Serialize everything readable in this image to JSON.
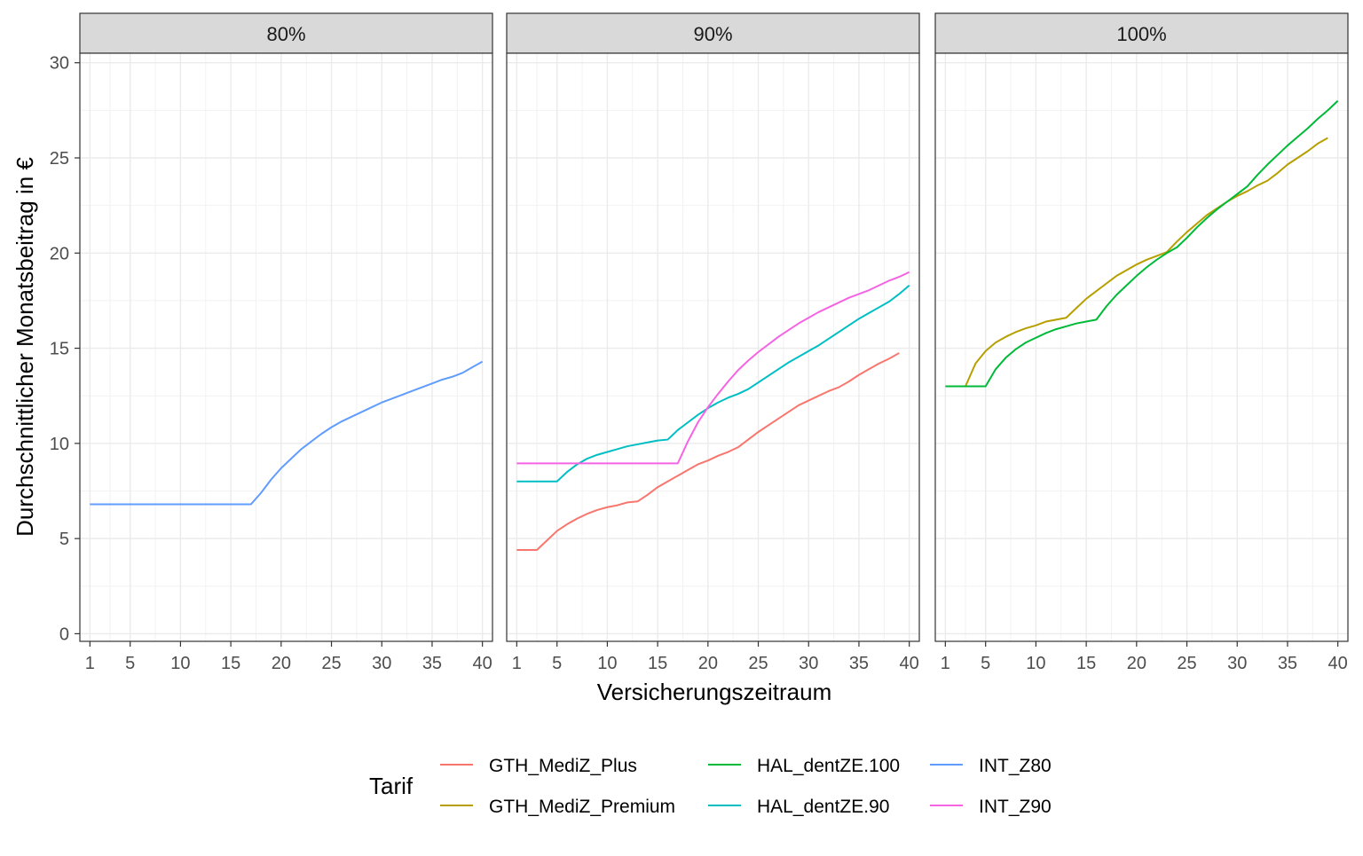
{
  "chart_data": {
    "type": "line",
    "xlabel": "Versicherungszeitraum",
    "ylabel": "Durchschnittlicher Monatsbeitrag in €",
    "xlim": [
      0,
      41
    ],
    "ylim": [
      -0.4,
      30.5
    ],
    "x_ticks": [
      1,
      5,
      10,
      15,
      20,
      25,
      30,
      35,
      40
    ],
    "x_tick_labels": [
      "1",
      "5",
      "10",
      "15",
      "20",
      "25",
      "30",
      "35",
      "40"
    ],
    "y_ticks": [
      0,
      5,
      10,
      15,
      20,
      25,
      30
    ],
    "y_tick_labels": [
      "0",
      "5",
      "10",
      "15",
      "20",
      "25",
      "30"
    ],
    "grid": true,
    "legend": {
      "title": "Tarif",
      "position": "bottom",
      "entries": [
        {
          "name": "GTH_MediZ_Plus",
          "color": "#F8766D"
        },
        {
          "name": "GTH_MediZ_Premium",
          "color": "#B79F00"
        },
        {
          "name": "HAL_dentZE.100",
          "color": "#00BA38"
        },
        {
          "name": "HAL_dentZE.90",
          "color": "#00BFC4"
        },
        {
          "name": "INT_Z80",
          "color": "#619CFF"
        },
        {
          "name": "INT_Z90",
          "color": "#F564E3"
        }
      ]
    },
    "panels": [
      {
        "label": "80%",
        "series": [
          {
            "name": "INT_Z80",
            "color": "#619CFF",
            "x": [
              1,
              17,
              18,
              19,
              20,
              21,
              22,
              23,
              24,
              25,
              26,
              27,
              28,
              29,
              30,
              31,
              32,
              33,
              34,
              35,
              36,
              37,
              38,
              39,
              40
            ],
            "y": [
              6.8,
              6.8,
              7.4,
              8.1,
              8.7,
              9.2,
              9.7,
              10.1,
              10.5,
              10.85,
              11.15,
              11.4,
              11.65,
              11.9,
              12.15,
              12.35,
              12.55,
              12.75,
              12.95,
              13.15,
              13.35,
              13.5,
              13.7,
              14.0,
              14.3
            ]
          }
        ]
      },
      {
        "label": "90%",
        "series": [
          {
            "name": "GTH_MediZ_Plus",
            "color": "#F8766D",
            "x": [
              1,
              3,
              4,
              5,
              6,
              7,
              8,
              9,
              10,
              11,
              12,
              13,
              14,
              15,
              16,
              17,
              18,
              19,
              20,
              21,
              22,
              23,
              24,
              25,
              26,
              27,
              28,
              29,
              30,
              31,
              32,
              33,
              34,
              35,
              36,
              37,
              38,
              39
            ],
            "y": [
              4.4,
              4.4,
              4.9,
              5.4,
              5.75,
              6.05,
              6.3,
              6.5,
              6.65,
              6.75,
              6.9,
              6.95,
              7.3,
              7.7,
              8.0,
              8.3,
              8.6,
              8.9,
              9.1,
              9.35,
              9.55,
              9.8,
              10.2,
              10.6,
              10.95,
              11.3,
              11.65,
              12.0,
              12.25,
              12.5,
              12.75,
              12.95,
              13.25,
              13.6,
              13.9,
              14.2,
              14.45,
              14.75
            ]
          },
          {
            "name": "HAL_dentZE.90",
            "color": "#00BFC4",
            "x": [
              1,
              5,
              6,
              7,
              8,
              9,
              10,
              11,
              12,
              13,
              14,
              15,
              16,
              17,
              18,
              19,
              20,
              21,
              22,
              23,
              24,
              25,
              26,
              27,
              28,
              29,
              30,
              31,
              32,
              33,
              34,
              35,
              36,
              37,
              38,
              39,
              40
            ],
            "y": [
              8.0,
              8.0,
              8.5,
              8.9,
              9.2,
              9.4,
              9.55,
              9.7,
              9.85,
              9.95,
              10.05,
              10.15,
              10.2,
              10.7,
              11.1,
              11.5,
              11.85,
              12.15,
              12.4,
              12.6,
              12.85,
              13.2,
              13.55,
              13.9,
              14.25,
              14.55,
              14.85,
              15.15,
              15.5,
              15.85,
              16.2,
              16.55,
              16.85,
              17.15,
              17.45,
              17.85,
              18.3
            ]
          },
          {
            "name": "INT_Z90",
            "color": "#F564E3",
            "x": [
              1,
              17,
              18,
              19,
              20,
              21,
              22,
              23,
              24,
              25,
              26,
              27,
              28,
              29,
              30,
              31,
              32,
              33,
              34,
              35,
              36,
              37,
              38,
              39,
              40
            ],
            "y": [
              8.95,
              8.95,
              10.1,
              11.1,
              11.9,
              12.6,
              13.25,
              13.85,
              14.35,
              14.8,
              15.2,
              15.6,
              15.95,
              16.3,
              16.6,
              16.9,
              17.15,
              17.4,
              17.65,
              17.85,
              18.05,
              18.3,
              18.55,
              18.75,
              19.0
            ]
          }
        ]
      },
      {
        "label": "100%",
        "series": [
          {
            "name": "GTH_MediZ_Premium",
            "color": "#B79F00",
            "x": [
              3,
              4,
              5,
              6,
              7,
              8,
              9,
              10,
              11,
              12,
              13,
              14,
              15,
              16,
              17,
              18,
              19,
              20,
              21,
              22,
              23,
              24,
              25,
              26,
              27,
              28,
              29,
              30,
              31,
              32,
              33,
              34,
              35,
              36,
              37,
              38,
              39
            ],
            "y": [
              13.0,
              14.2,
              14.85,
              15.3,
              15.6,
              15.85,
              16.05,
              16.2,
              16.4,
              16.5,
              16.6,
              17.1,
              17.6,
              18.0,
              18.4,
              18.8,
              19.1,
              19.4,
              19.65,
              19.85,
              20.05,
              20.6,
              21.1,
              21.55,
              22.0,
              22.35,
              22.7,
              23.0,
              23.25,
              23.55,
              23.8,
              24.2,
              24.65,
              25.0,
              25.35,
              25.75,
              26.05
            ]
          },
          {
            "name": "HAL_dentZE.100",
            "color": "#00BA38",
            "x": [
              1,
              5,
              6,
              7,
              8,
              9,
              10,
              11,
              12,
              13,
              14,
              15,
              16,
              17,
              18,
              19,
              20,
              21,
              22,
              23,
              24,
              25,
              26,
              27,
              28,
              29,
              30,
              31,
              32,
              33,
              34,
              35,
              36,
              37,
              38,
              39,
              40
            ],
            "y": [
              13.0,
              13.0,
              13.9,
              14.5,
              14.95,
              15.3,
              15.55,
              15.8,
              16.0,
              16.15,
              16.3,
              16.4,
              16.5,
              17.2,
              17.8,
              18.3,
              18.8,
              19.25,
              19.65,
              20.0,
              20.3,
              20.8,
              21.35,
              21.85,
              22.3,
              22.7,
              23.1,
              23.5,
              24.1,
              24.65,
              25.15,
              25.65,
              26.1,
              26.55,
              27.05,
              27.5,
              28.0
            ]
          }
        ]
      }
    ]
  }
}
